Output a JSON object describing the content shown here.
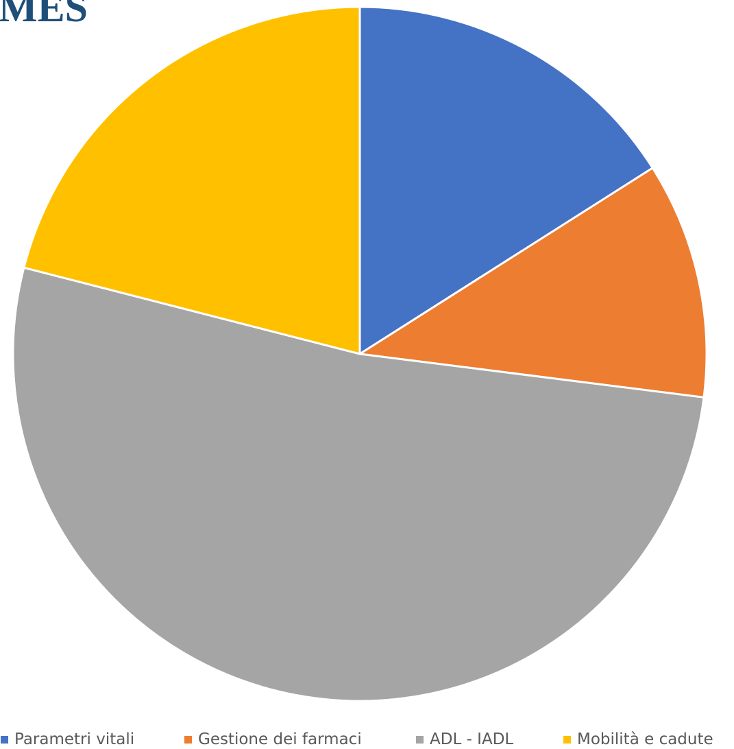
{
  "chart_data": {
    "type": "pie",
    "title": "MES",
    "start_angle": "12 o'clock, clockwise",
    "slices": [
      {
        "label": "Parametri vitali",
        "value": 16,
        "color": "#4472C4"
      },
      {
        "label": "Gestione dei farmaci",
        "value": 11,
        "color": "#ED7D31"
      },
      {
        "label": "ADL - IADL",
        "value": 52,
        "color": "#A5A5A5"
      },
      {
        "label": "Mobilità e cadute",
        "value": 21,
        "color": "#FFC000"
      }
    ],
    "legend": "bottom"
  }
}
